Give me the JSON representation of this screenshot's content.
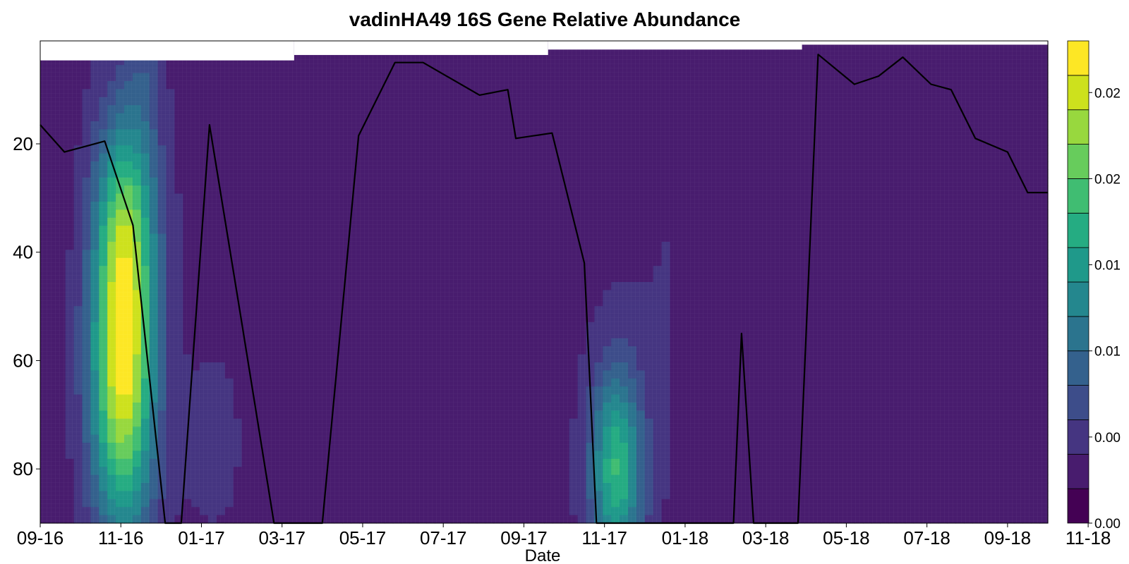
{
  "chart_data": {
    "type": "heatmap",
    "title": "vadinHA49 16S Gene Relative Abundance",
    "xlabel": "Date",
    "ylabel": "",
    "x_tick_labels": [
      "09-16",
      "11-16",
      "01-17",
      "03-17",
      "05-17",
      "07-17",
      "09-17",
      "11-17",
      "01-18",
      "03-18",
      "05-18",
      "07-18",
      "09-18",
      "11-18"
    ],
    "y_ticks": [
      20,
      40,
      60,
      80
    ],
    "y_range": [
      1,
      90
    ],
    "y_inverted": true,
    "colorbar": {
      "colormap": "viridis",
      "tick_labels": [
        "0.00",
        "0.00",
        "0.01",
        "0.01",
        "0.02",
        "0.02"
      ],
      "levels": 14,
      "range": [
        0,
        0.028
      ]
    },
    "hotspots": [
      {
        "x_month": 2.05,
        "y_depth": 60,
        "value": 0.027,
        "x_spread": 0.55,
        "y_spread": 22
      },
      {
        "x_month": 2.15,
        "y_depth": 32,
        "value": 0.012,
        "x_spread": 0.5,
        "y_spread": 14
      },
      {
        "x_month": 2.6,
        "y_depth": 5,
        "value": 0.006,
        "x_spread": 0.3,
        "y_spread": 12
      },
      {
        "x_month": 14.3,
        "y_depth": 80,
        "value": 0.018,
        "x_spread": 0.45,
        "y_spread": 13
      },
      {
        "x_month": 15.5,
        "y_depth": 40,
        "value": 0.004,
        "x_spread": 0.8,
        "y_spread": 40
      },
      {
        "x_month": 4.3,
        "y_depth": 75,
        "value": 0.0045,
        "x_spread": 0.6,
        "y_spread": 14
      },
      {
        "x_month": 0.6,
        "y_depth": 50,
        "value": 0.003,
        "x_spread": 0.8,
        "y_spread": 40
      },
      {
        "x_month": 22.6,
        "y_depth": 80,
        "value": 0.004,
        "x_spread": 1.3,
        "y_spread": 30
      }
    ],
    "series": [
      {
        "type": "line",
        "color": "#000000",
        "x_month": [
          0,
          0.6,
          1.6,
          2.3,
          3.1,
          3.5,
          4.2,
          5.0,
          5.8,
          7.0,
          7.9,
          8.8,
          9.5,
          10.9,
          11.6,
          11.8,
          12.7,
          13.5,
          13.8,
          14.4,
          15.0,
          16.0,
          17.2,
          17.4,
          17.7,
          18.8,
          19.3,
          20.2,
          20.8,
          21.4,
          22.1,
          22.6,
          23.2,
          24.0,
          24.5,
          25.0
        ],
        "y_depth": [
          16.5,
          21.5,
          19.5,
          35,
          91,
          91,
          16.5,
          53,
          91,
          91,
          18.5,
          5,
          5,
          11,
          10,
          19,
          18,
          42,
          91,
          91,
          91,
          91,
          91,
          55,
          91,
          91,
          3.5,
          9,
          7.5,
          4,
          9,
          10,
          19,
          21.5,
          29,
          29
        ]
      }
    ]
  }
}
